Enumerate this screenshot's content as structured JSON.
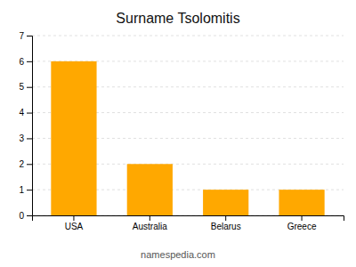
{
  "chart_data": {
    "type": "bar",
    "title": "Surname Tsolomitis",
    "categories": [
      "USA",
      "Australia",
      "Belarus",
      "Greece"
    ],
    "values": [
      6,
      2,
      1,
      1
    ],
    "color": "#FFA800",
    "ylim": [
      0,
      7
    ],
    "yticks": [
      0,
      1,
      2,
      3,
      4,
      5,
      6,
      7
    ],
    "grid": true,
    "annotations": [
      "namespedia.com"
    ]
  }
}
